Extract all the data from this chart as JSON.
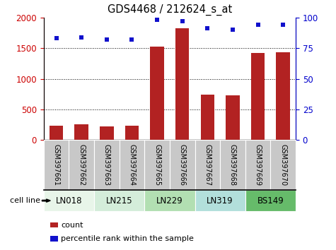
{
  "title": "GDS4468 / 212624_s_at",
  "samples": [
    "GSM397661",
    "GSM397662",
    "GSM397663",
    "GSM397664",
    "GSM397665",
    "GSM397666",
    "GSM397667",
    "GSM397668",
    "GSM397669",
    "GSM397670"
  ],
  "counts": [
    230,
    255,
    225,
    228,
    1530,
    1820,
    735,
    725,
    1420,
    1430
  ],
  "percentiles": [
    83,
    84,
    82,
    82,
    98,
    97,
    91,
    90,
    94,
    94
  ],
  "cell_lines": [
    {
      "label": "LN018",
      "start": 0,
      "end": 2,
      "color": "#e8f5e9"
    },
    {
      "label": "LN215",
      "start": 2,
      "end": 4,
      "color": "#d4edda"
    },
    {
      "label": "LN229",
      "start": 4,
      "end": 6,
      "color": "#b2dfb2"
    },
    {
      "label": "LN319",
      "start": 6,
      "end": 8,
      "color": "#b2dfdb"
    },
    {
      "label": "BS149",
      "start": 8,
      "end": 10,
      "color": "#66bb6a"
    }
  ],
  "bar_color": "#b22222",
  "dot_color": "#1111cc",
  "left_ylim": [
    0,
    2000
  ],
  "right_ylim": [
    0,
    100
  ],
  "left_yticks": [
    0,
    500,
    1000,
    1500,
    2000
  ],
  "right_yticks": [
    0,
    25,
    50,
    75,
    100
  ],
  "grid_values": [
    500,
    1000,
    1500
  ],
  "bar_width": 0.55,
  "left_tick_color": "#cc0000",
  "right_tick_color": "#0000cc",
  "gray_box_color": "#c8c8c8",
  "legend_count_label": "count",
  "legend_pct_label": "percentile rank within the sample",
  "cell_line_label": "cell line"
}
